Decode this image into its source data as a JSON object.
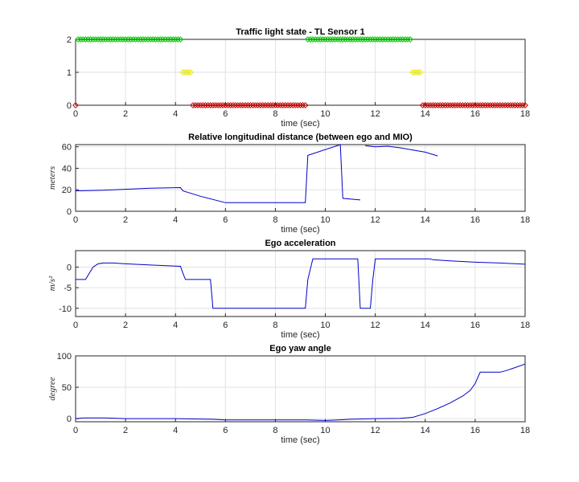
{
  "chart_data": [
    {
      "type": "scatter",
      "title": "Traffic light state - TL Sensor 1",
      "xlabel": "time (sec)",
      "ylabel": "",
      "xlim": [
        0,
        18
      ],
      "ylim": [
        0,
        2
      ],
      "xticks": [
        "0",
        "2",
        "4",
        "6",
        "8",
        "10",
        "12",
        "14",
        "16",
        "18"
      ],
      "yticks": [
        "0",
        "1",
        "2"
      ],
      "grid": true,
      "marker": "diamond-open",
      "series": [
        {
          "color": "#00cc00",
          "segments": [
            [
              0.1,
              4.2,
              2
            ],
            [
              9.3,
              13.4,
              2
            ]
          ]
        },
        {
          "color": "#e6e600",
          "segments": [
            [
              4.3,
              4.6,
              1
            ],
            [
              13.5,
              13.8,
              1
            ]
          ]
        },
        {
          "color": "#cc0000",
          "segments": [
            [
              0,
              0,
              0
            ],
            [
              4.7,
              9.2,
              0
            ],
            [
              13.9,
              18,
              0
            ]
          ]
        }
      ]
    },
    {
      "type": "line",
      "title": "Relative longitudinal distance (between ego and MIO)",
      "xlabel": "time (sec)",
      "ylabel": "meters",
      "xlim": [
        0,
        18
      ],
      "ylim": [
        0,
        62
      ],
      "xticks": [
        "0",
        "2",
        "4",
        "6",
        "8",
        "10",
        "12",
        "14",
        "16",
        "18"
      ],
      "yticks": [
        "0",
        "20",
        "40",
        "60"
      ],
      "grid": true,
      "color": "#0000cc",
      "segments": [
        [
          [
            0,
            19
          ],
          [
            1,
            19.5
          ],
          [
            2,
            20.5
          ],
          [
            3,
            21.5
          ],
          [
            4.2,
            22
          ],
          [
            4.3,
            19
          ],
          [
            5,
            14
          ],
          [
            6,
            8
          ],
          [
            9.2,
            8
          ],
          [
            9.3,
            52
          ],
          [
            10.6,
            62
          ],
          [
            10.7,
            12
          ],
          [
            11.4,
            10.5
          ]
        ],
        [
          [
            11.6,
            61
          ],
          [
            12,
            60
          ],
          [
            12.5,
            60.5
          ],
          [
            13,
            59
          ],
          [
            13.5,
            57
          ],
          [
            14,
            55
          ],
          [
            14.5,
            51.5
          ]
        ]
      ]
    },
    {
      "type": "line",
      "title": "Ego acceleration",
      "xlabel": "time (sec)",
      "ylabel": "m/s²",
      "xlim": [
        0,
        18
      ],
      "ylim": [
        -12,
        4
      ],
      "xticks": [
        "0",
        "2",
        "4",
        "6",
        "8",
        "10",
        "12",
        "14",
        "16",
        "18"
      ],
      "yticks": [
        "-10",
        "-5",
        "0"
      ],
      "grid": true,
      "color": "#0000cc",
      "x": [
        0,
        0.4,
        0.5,
        0.7,
        0.9,
        1.1,
        1.5,
        2,
        3,
        4.2,
        4.3,
        4.4,
        5.4,
        5.5,
        9.2,
        9.3,
        9.5,
        11.3,
        11.4,
        11.8,
        11.9,
        12,
        14.2,
        14.3,
        15,
        16,
        17,
        18
      ],
      "y": [
        -3,
        -3,
        -2,
        0,
        0.8,
        1,
        1,
        0.8,
        0.5,
        0.2,
        -1.5,
        -3,
        -3,
        -10,
        -10,
        -3,
        2,
        2,
        -10,
        -10,
        -3,
        2,
        2,
        1.8,
        1.5,
        1.2,
        1,
        0.7
      ]
    },
    {
      "type": "line",
      "title": "Ego yaw angle",
      "xlabel": "time (sec)",
      "ylabel": "degree",
      "xlim": [
        0,
        18
      ],
      "ylim": [
        -5,
        100
      ],
      "xticks": [
        "0",
        "2",
        "4",
        "6",
        "8",
        "10",
        "12",
        "14",
        "16",
        "18"
      ],
      "yticks": [
        "0",
        "50",
        "100"
      ],
      "grid": true,
      "color": "#0000cc",
      "x": [
        0,
        0.3,
        1.2,
        2,
        4,
        5.5,
        6,
        8,
        9.2,
        10,
        10.5,
        11,
        12,
        13,
        13.5,
        14,
        14.5,
        15,
        15.5,
        15.8,
        16,
        16.2,
        17,
        17.2,
        17.5,
        18
      ],
      "y": [
        0,
        1,
        1,
        0,
        0,
        -1,
        -2,
        -2,
        -2,
        -3,
        -2,
        -1,
        0,
        0.5,
        2,
        8,
        16,
        25,
        36,
        45,
        56,
        74,
        74,
        76,
        80,
        87
      ]
    }
  ]
}
